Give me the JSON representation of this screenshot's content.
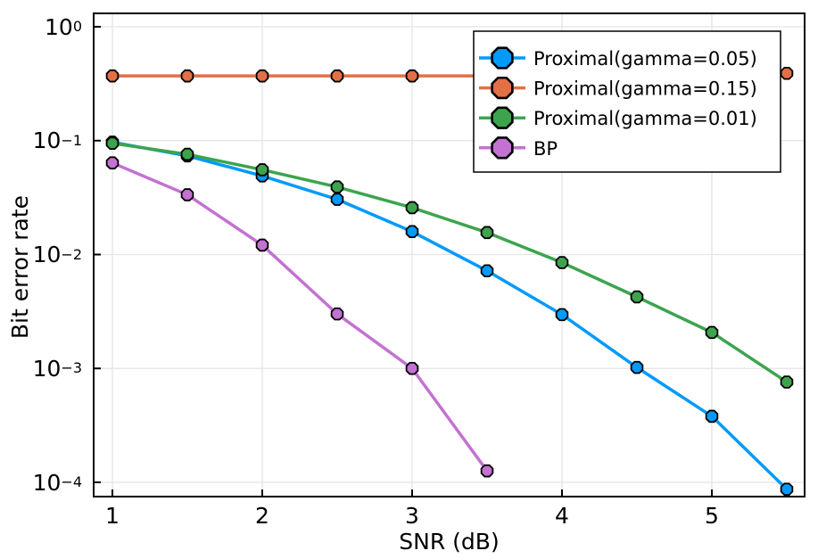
{
  "figure": {
    "background_color": "#ffffff",
    "frame_color": "#000000",
    "grid_color": "#e3e3e3"
  },
  "chart_data": {
    "type": "line",
    "title": "",
    "xlabel": "SNR (dB)",
    "ylabel": "Bit error rate",
    "x_scale": "linear",
    "y_scale": "log10",
    "xlim": [
      0.87,
      5.62
    ],
    "ylim": [
      7.5e-05,
      1.31
    ],
    "grid": true,
    "legend_position": "top-right",
    "marker_shape": "octagon",
    "x_ticks": [
      1,
      2,
      3,
      4,
      5
    ],
    "y_tick_exponents": [
      0,
      -1,
      -2,
      -3,
      -4
    ],
    "series": [
      {
        "name": "Proximal(gamma=0.05)",
        "color": "#009AFA",
        "x": [
          1,
          1.5,
          2,
          2.5,
          3,
          3.5,
          4,
          4.5,
          5,
          5.5
        ],
        "values": [
          0.097,
          0.0735,
          0.049,
          0.0305,
          0.0159,
          0.0072,
          0.00297,
          0.00102,
          0.00038,
          8.7e-05
        ]
      },
      {
        "name": "Proximal(gamma=0.15)",
        "color": "#E36F47",
        "x": [
          1,
          1.5,
          2,
          2.5,
          3,
          3.5,
          4,
          4.5,
          5,
          5.5
        ],
        "values": [
          0.37,
          0.37,
          0.37,
          0.37,
          0.37,
          0.37,
          0.37,
          0.37,
          0.37,
          0.39
        ]
      },
      {
        "name": "Proximal(gamma=0.01)",
        "color": "#3DA44E",
        "x": [
          1,
          1.5,
          2,
          2.5,
          3,
          3.5,
          4,
          4.5,
          5,
          5.5
        ],
        "values": [
          0.0948,
          0.0759,
          0.0555,
          0.0392,
          0.0258,
          0.0156,
          0.0085,
          0.00425,
          0.00207,
          0.00076
        ]
      },
      {
        "name": "BP",
        "color": "#C371D2",
        "x": [
          1,
          1.5,
          2,
          2.5,
          3,
          3.5
        ],
        "values": [
          0.0638,
          0.0335,
          0.0121,
          0.00301,
          0.001,
          0.000126
        ]
      }
    ]
  }
}
